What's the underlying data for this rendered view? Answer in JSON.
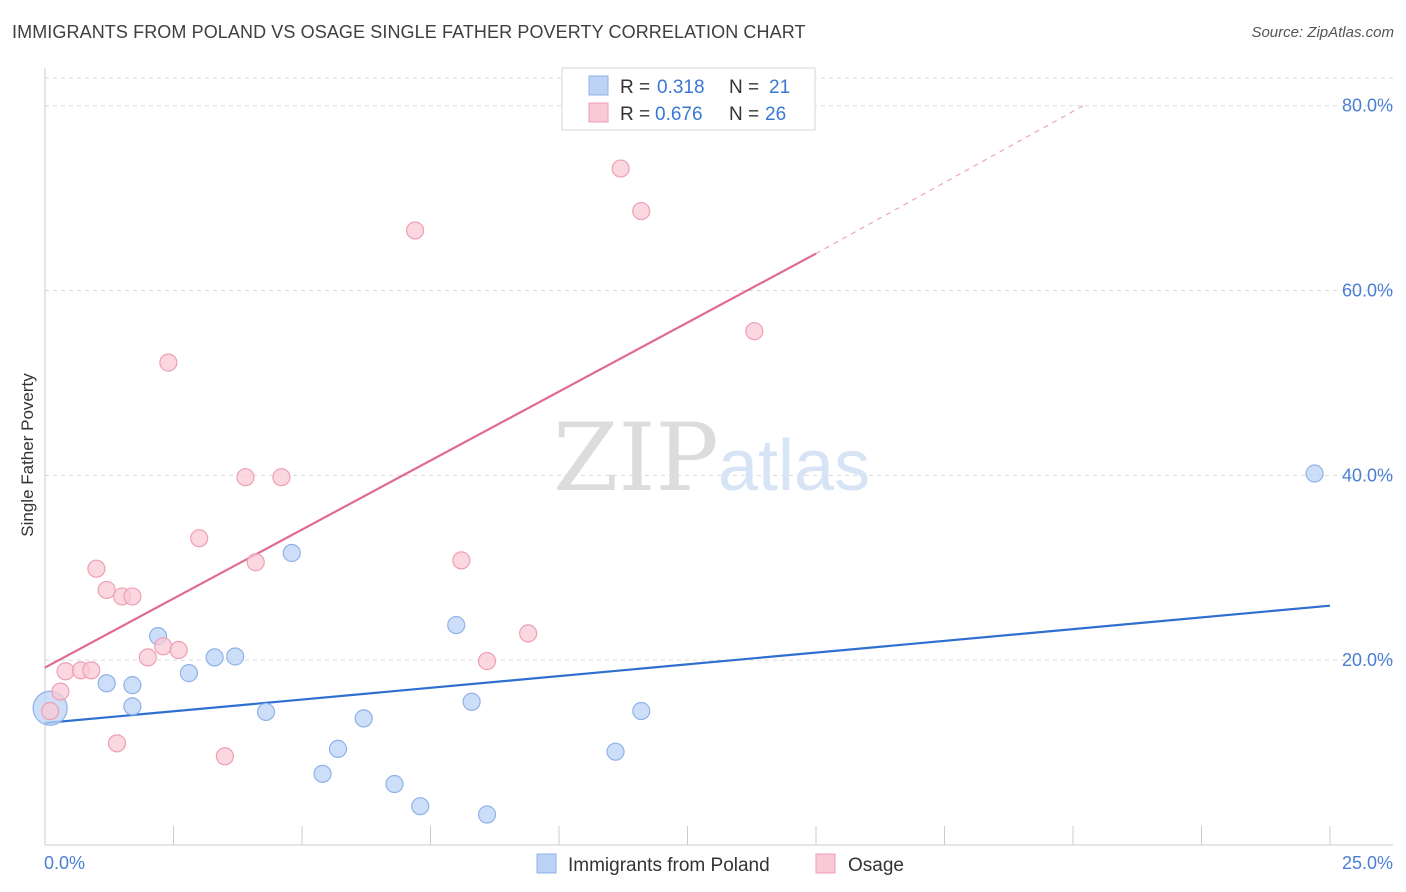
{
  "title": "IMMIGRANTS FROM POLAND VS OSAGE SINGLE FATHER POVERTY CORRELATION CHART",
  "source": "Source: ZipAtlas.com",
  "watermark": {
    "zip": "ZIP",
    "atlas": "atlas"
  },
  "colors": {
    "blue_fill": "#bcd3f5",
    "blue_stroke": "#8fb2e8",
    "blue_line": "#2f6fd0",
    "pink_fill": "#f9c9d6",
    "pink_stroke": "#ee9fb6",
    "pink_line": "#e06a92",
    "grid": "#d9d9d9",
    "tick_text": "#4a7fd4"
  },
  "legend": {
    "rows": [
      {
        "r_label": "R =",
        "r_value": "0.318",
        "n_label": "N =",
        "n_value": "21",
        "series": "blue"
      },
      {
        "r_label": "R =",
        "r_value": "0.676",
        "n_label": "N =",
        "n_value": "26",
        "series": "pink"
      }
    ]
  },
  "bottom_legend": [
    "Immigrants from Poland",
    "Osage"
  ],
  "chart_data": {
    "type": "scatter",
    "title": "IMMIGRANTS FROM POLAND VS OSAGE SINGLE FATHER POVERTY CORRELATION CHART",
    "xlabel": "",
    "ylabel": "Single Father Poverty",
    "xlim": [
      0,
      25
    ],
    "ylim": [
      0,
      83
    ],
    "x_tick_labels": [
      "0.0%",
      "25.0%"
    ],
    "y_ticks": [
      20,
      40,
      60,
      80
    ],
    "y_tick_labels": [
      "20.0%",
      "40.0%",
      "60.0%",
      "80.0%"
    ],
    "grid": "horizontal dashed",
    "legend_position": "top-center",
    "series": [
      {
        "name": "Immigrants from Poland",
        "color": "#bcd3f5",
        "points": [
          {
            "x": 0.1,
            "y": 14.8,
            "big": true
          },
          {
            "x": 1.2,
            "y": 17.5
          },
          {
            "x": 1.7,
            "y": 17.3
          },
          {
            "x": 1.7,
            "y": 15.0
          },
          {
            "x": 2.2,
            "y": 22.6
          },
          {
            "x": 2.8,
            "y": 18.6
          },
          {
            "x": 3.3,
            "y": 20.3
          },
          {
            "x": 3.7,
            "y": 20.4
          },
          {
            "x": 4.3,
            "y": 14.4
          },
          {
            "x": 4.8,
            "y": 31.6
          },
          {
            "x": 5.4,
            "y": 7.7
          },
          {
            "x": 5.7,
            "y": 10.4
          },
          {
            "x": 6.2,
            "y": 13.7
          },
          {
            "x": 6.8,
            "y": 6.6
          },
          {
            "x": 7.3,
            "y": 4.2
          },
          {
            "x": 8.0,
            "y": 23.8
          },
          {
            "x": 8.3,
            "y": 15.5
          },
          {
            "x": 8.6,
            "y": 3.3
          },
          {
            "x": 11.1,
            "y": 10.1
          },
          {
            "x": 11.6,
            "y": 14.5
          },
          {
            "x": 24.7,
            "y": 40.2
          }
        ],
        "trend": {
          "x0": 0,
          "y0": 13.2,
          "x1": 25,
          "y1": 25.9
        }
      },
      {
        "name": "Osage",
        "color": "#f9c9d6",
        "points": [
          {
            "x": 0.1,
            "y": 14.5
          },
          {
            "x": 0.3,
            "y": 16.6
          },
          {
            "x": 0.4,
            "y": 18.8
          },
          {
            "x": 0.7,
            "y": 18.9
          },
          {
            "x": 0.9,
            "y": 18.9
          },
          {
            "x": 1.0,
            "y": 29.9
          },
          {
            "x": 1.2,
            "y": 27.6
          },
          {
            "x": 1.4,
            "y": 11.0
          },
          {
            "x": 1.5,
            "y": 26.9
          },
          {
            "x": 1.7,
            "y": 26.9
          },
          {
            "x": 2.0,
            "y": 20.3
          },
          {
            "x": 2.3,
            "y": 21.5
          },
          {
            "x": 2.4,
            "y": 52.2
          },
          {
            "x": 2.6,
            "y": 21.1
          },
          {
            "x": 3.0,
            "y": 33.2
          },
          {
            "x": 3.5,
            "y": 9.6
          },
          {
            "x": 3.9,
            "y": 39.8
          },
          {
            "x": 4.1,
            "y": 30.6
          },
          {
            "x": 4.6,
            "y": 39.8
          },
          {
            "x": 7.2,
            "y": 66.5
          },
          {
            "x": 8.1,
            "y": 30.8
          },
          {
            "x": 8.6,
            "y": 19.9
          },
          {
            "x": 9.4,
            "y": 22.9
          },
          {
            "x": 11.2,
            "y": 73.2
          },
          {
            "x": 11.6,
            "y": 68.6
          },
          {
            "x": 13.8,
            "y": 55.6
          }
        ],
        "trend": {
          "x0": 0,
          "y0": 19.2,
          "x1": 15,
          "y1": 64.0
        },
        "trend_dashed_to": {
          "x": 20.2,
          "y": 80.0
        }
      }
    ]
  }
}
